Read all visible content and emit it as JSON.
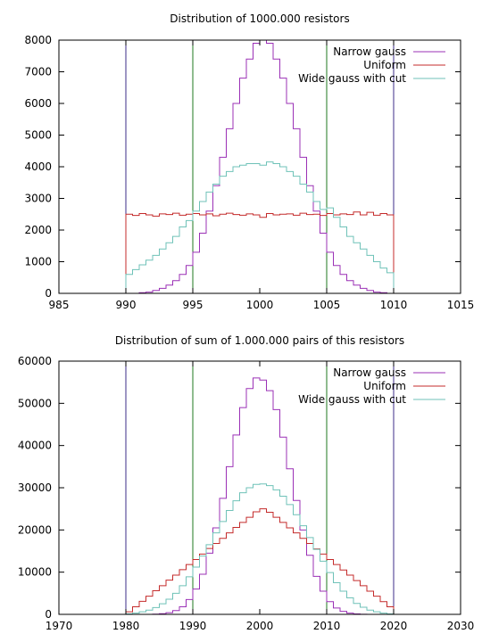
{
  "chart_data": [
    {
      "type": "line",
      "title": "Distribution of 1000.000 resistors",
      "xlabel": "",
      "ylabel": "",
      "xlim": [
        985,
        1015
      ],
      "ylim": [
        0,
        8000
      ],
      "x_ticks": [
        985,
        990,
        995,
        1000,
        1005,
        1010,
        1015
      ],
      "y_ticks": [
        0,
        1000,
        2000,
        3000,
        4000,
        5000,
        6000,
        7000,
        8000
      ],
      "grid": false,
      "legend_position": "top-right",
      "bin_width": 0.5,
      "vertical_lines": [
        {
          "x": 990,
          "color": "#3d2d8a"
        },
        {
          "x": 995,
          "color": "#1f7a1f"
        },
        {
          "x": 1005,
          "color": "#1f7a1f"
        },
        {
          "x": 1010,
          "color": "#3d2d8a"
        }
      ],
      "series": [
        {
          "name": "Narrow gauss",
          "color": "#9b30b6",
          "x": [
            990,
            990.5,
            991,
            991.5,
            992,
            992.5,
            993,
            993.5,
            994,
            994.5,
            995,
            995.5,
            996,
            996.5,
            997,
            997.5,
            998,
            998.5,
            999,
            999.5,
            1000,
            1000.5,
            1001,
            1001.5,
            1002,
            1002.5,
            1003,
            1003.5,
            1004,
            1004.5,
            1005,
            1005.5,
            1006,
            1006.5,
            1007,
            1007.5,
            1008,
            1008.5,
            1009,
            1009.5
          ],
          "values": [
            0,
            0,
            20,
            40,
            90,
            160,
            260,
            400,
            600,
            880,
            1300,
            1900,
            2600,
            3400,
            4300,
            5200,
            6000,
            6800,
            7400,
            7900,
            8000,
            7900,
            7400,
            6800,
            6000,
            5200,
            4300,
            3400,
            2600,
            1900,
            1300,
            880,
            600,
            400,
            260,
            160,
            90,
            40,
            20,
            0
          ]
        },
        {
          "name": "Uniform",
          "color": "#c42b2b",
          "x": [
            990,
            990.5,
            991,
            991.5,
            992,
            992.5,
            993,
            993.5,
            994,
            994.5,
            995,
            995.5,
            996,
            996.5,
            997,
            997.5,
            998,
            998.5,
            999,
            999.5,
            1000,
            1000.5,
            1001,
            1001.5,
            1002,
            1002.5,
            1003,
            1003.5,
            1004,
            1004.5,
            1005,
            1005.5,
            1006,
            1006.5,
            1007,
            1007.5,
            1008,
            1008.5,
            1009,
            1009.5
          ],
          "values": [
            2500,
            2460,
            2520,
            2480,
            2440,
            2510,
            2490,
            2530,
            2470,
            2500,
            2520,
            2480,
            2510,
            2450,
            2500,
            2530,
            2490,
            2470,
            2510,
            2480,
            2400,
            2520,
            2480,
            2500,
            2510,
            2470,
            2530,
            2490,
            2500,
            2460,
            2520,
            2480,
            2510,
            2490,
            2570,
            2480,
            2560,
            2470,
            2520,
            2480
          ]
        },
        {
          "name": "Wide gauss with cut",
          "color": "#6fc2b8",
          "x": [
            990,
            990.5,
            991,
            991.5,
            992,
            992.5,
            993,
            993.5,
            994,
            994.5,
            995,
            995.5,
            996,
            996.5,
            997,
            997.5,
            998,
            998.5,
            999,
            999.5,
            1000,
            1000.5,
            1001,
            1001.5,
            1002,
            1002.5,
            1003,
            1003.5,
            1004,
            1004.5,
            1005,
            1005.5,
            1006,
            1006.5,
            1007,
            1007.5,
            1008,
            1008.5,
            1009,
            1009.5
          ],
          "values": [
            600,
            750,
            900,
            1050,
            1200,
            1400,
            1600,
            1800,
            2100,
            2300,
            2600,
            2900,
            3200,
            3450,
            3700,
            3850,
            4000,
            4050,
            4100,
            4100,
            4050,
            4150,
            4100,
            4000,
            3850,
            3700,
            3450,
            3200,
            2900,
            2650,
            2700,
            2400,
            2100,
            1800,
            1600,
            1400,
            1200,
            1000,
            800,
            650
          ]
        }
      ]
    },
    {
      "type": "line",
      "title": "Distribution of sum of 1.000.000 pairs of this resistors",
      "xlabel": "",
      "ylabel": "",
      "xlim": [
        1970,
        2030
      ],
      "ylim": [
        0,
        60000
      ],
      "x_ticks": [
        1970,
        1980,
        1990,
        2000,
        2010,
        2020,
        2030
      ],
      "y_ticks": [
        0,
        10000,
        20000,
        30000,
        40000,
        50000,
        60000
      ],
      "grid": false,
      "legend_position": "top-right",
      "bin_width": 1,
      "vertical_lines": [
        {
          "x": 1980,
          "color": "#3d2d8a"
        },
        {
          "x": 1990,
          "color": "#1f7a1f"
        },
        {
          "x": 2010,
          "color": "#1f7a1f"
        },
        {
          "x": 2020,
          "color": "#3d2d8a"
        }
      ],
      "series": [
        {
          "name": "Narrow gauss",
          "color": "#9b30b6",
          "x": [
            1980,
            1981,
            1982,
            1983,
            1984,
            1985,
            1986,
            1987,
            1988,
            1989,
            1990,
            1991,
            1992,
            1993,
            1994,
            1995,
            1996,
            1997,
            1998,
            1999,
            2000,
            2001,
            2002,
            2003,
            2004,
            2005,
            2006,
            2007,
            2008,
            2009,
            2010,
            2011,
            2012,
            2013,
            2014,
            2015,
            2016,
            2017,
            2018,
            2019
          ],
          "values": [
            0,
            0,
            0,
            0,
            50,
            150,
            400,
            900,
            1800,
            3500,
            6000,
            9500,
            14500,
            20500,
            27500,
            35000,
            42500,
            49000,
            53500,
            56000,
            55500,
            53000,
            48500,
            42000,
            34500,
            27000,
            20000,
            14000,
            9000,
            5500,
            3000,
            1500,
            700,
            300,
            100,
            30,
            0,
            0,
            0,
            0
          ]
        },
        {
          "name": "Uniform",
          "color": "#c42b2b",
          "x": [
            1980,
            1981,
            1982,
            1983,
            1984,
            1985,
            1986,
            1987,
            1988,
            1989,
            1990,
            1991,
            1992,
            1993,
            1994,
            1995,
            1996,
            1997,
            1998,
            1999,
            2000,
            2001,
            2002,
            2003,
            2004,
            2005,
            2006,
            2007,
            2008,
            2009,
            2010,
            2011,
            2012,
            2013,
            2014,
            2015,
            2016,
            2017,
            2018,
            2019
          ],
          "values": [
            600,
            1800,
            3100,
            4300,
            5600,
            6800,
            8100,
            9300,
            10600,
            11800,
            13000,
            14300,
            15600,
            16800,
            18000,
            19300,
            20600,
            21800,
            23000,
            24300,
            25000,
            24200,
            23000,
            21800,
            20500,
            19300,
            18000,
            16800,
            15500,
            14300,
            13000,
            11800,
            10500,
            9300,
            8000,
            6800,
            5500,
            4300,
            3000,
            1800
          ]
        },
        {
          "name": "Wide gauss with cut",
          "color": "#6fc2b8",
          "x": [
            1980,
            1981,
            1982,
            1983,
            1984,
            1985,
            1986,
            1987,
            1988,
            1989,
            1990,
            1991,
            1992,
            1993,
            1994,
            1995,
            1996,
            1997,
            1998,
            1999,
            2000,
            2001,
            2002,
            2003,
            2004,
            2005,
            2006,
            2007,
            2008,
            2009,
            2010,
            2011,
            2012,
            2013,
            2014,
            2015,
            2016,
            2017,
            2018,
            2019
          ],
          "values": [
            100,
            300,
            600,
            1000,
            1600,
            2500,
            3600,
            5000,
            6800,
            8900,
            11200,
            13800,
            16500,
            19300,
            22000,
            24600,
            26900,
            28800,
            30000,
            30800,
            30900,
            30500,
            29500,
            28000,
            26000,
            23600,
            21000,
            18200,
            15400,
            12600,
            9900,
            7500,
            5500,
            3900,
            2600,
            1700,
            1000,
            600,
            300,
            100
          ]
        }
      ]
    }
  ]
}
